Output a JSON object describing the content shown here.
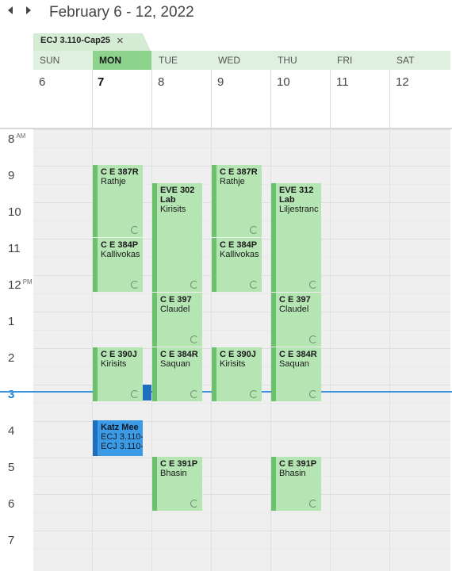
{
  "header": {
    "date_range": "February 6 - 12, 2022"
  },
  "calendar_tab": {
    "name": "ECJ 3.110-Cap25",
    "close_glyph": "×"
  },
  "days": [
    {
      "name": "SUN",
      "date": "6"
    },
    {
      "name": "MON",
      "date": "7",
      "today": true
    },
    {
      "name": "TUE",
      "date": "8"
    },
    {
      "name": "WED",
      "date": "9"
    },
    {
      "name": "THU",
      "date": "10"
    },
    {
      "name": "FRI",
      "date": "11"
    },
    {
      "name": "SAT",
      "date": "12"
    }
  ],
  "hours": [
    {
      "label": "8",
      "suffix": "AM"
    },
    {
      "label": "9",
      "suffix": ""
    },
    {
      "label": "10",
      "suffix": ""
    },
    {
      "label": "11",
      "suffix": ""
    },
    {
      "label": "12",
      "suffix": "PM"
    },
    {
      "label": "1",
      "suffix": ""
    },
    {
      "label": "2",
      "suffix": ""
    },
    {
      "label": "3",
      "suffix": ""
    },
    {
      "label": "4",
      "suffix": ""
    },
    {
      "label": "5",
      "suffix": ""
    },
    {
      "label": "6",
      "suffix": ""
    },
    {
      "label": "7",
      "suffix": ""
    }
  ],
  "current_hour_label": "3",
  "events": [
    {
      "title": "C E 387R",
      "lines": [
        "Rathje"
      ],
      "day": "MON",
      "recurring": true
    },
    {
      "title": "C E 384P",
      "lines": [
        "Kallivokas"
      ],
      "day": "MON",
      "recurring": true
    },
    {
      "title": "C E 390J",
      "lines": [
        "Kirisits"
      ],
      "day": "MON",
      "recurring": true
    },
    {
      "title": "Katz Mee",
      "lines": [
        "ECJ 3.110-",
        "ECJ 3.110-"
      ],
      "day": "MON",
      "recurring": false
    },
    {
      "title": "EVE 302",
      "lines": [
        "Lab",
        "Kirisits"
      ],
      "day": "TUE",
      "recurring": true
    },
    {
      "title": "C E 397",
      "lines": [
        "Claudel"
      ],
      "day": "TUE",
      "recurring": true
    },
    {
      "title": "C E 384R",
      "lines": [
        "Saquan"
      ],
      "day": "TUE",
      "recurring": true
    },
    {
      "title": "C E 391P",
      "lines": [
        "Bhasin"
      ],
      "day": "TUE",
      "recurring": true
    },
    {
      "title": "C E 387R",
      "lines": [
        "Rathje"
      ],
      "day": "WED",
      "recurring": true
    },
    {
      "title": "C E 384P",
      "lines": [
        "Kallivokas"
      ],
      "day": "WED",
      "recurring": true
    },
    {
      "title": "C E 390J",
      "lines": [
        "Kirisits"
      ],
      "day": "WED",
      "recurring": true
    },
    {
      "title": "EVE 312",
      "lines": [
        "Lab",
        "Liljestranc"
      ],
      "day": "THU",
      "recurring": true
    },
    {
      "title": "C E 397",
      "lines": [
        "Claudel"
      ],
      "day": "THU",
      "recurring": true
    },
    {
      "title": "C E 384R",
      "lines": [
        "Saquan"
      ],
      "day": "THU",
      "recurring": true
    },
    {
      "title": "C E 391P",
      "lines": [
        "Bhasin"
      ],
      "day": "THU",
      "recurring": true
    }
  ],
  "colors": {
    "event_fill": "#b4e5b3",
    "event_bar": "#6cc16d",
    "selected_event": "#3d9ae5",
    "now_line": "#3c94dc"
  }
}
